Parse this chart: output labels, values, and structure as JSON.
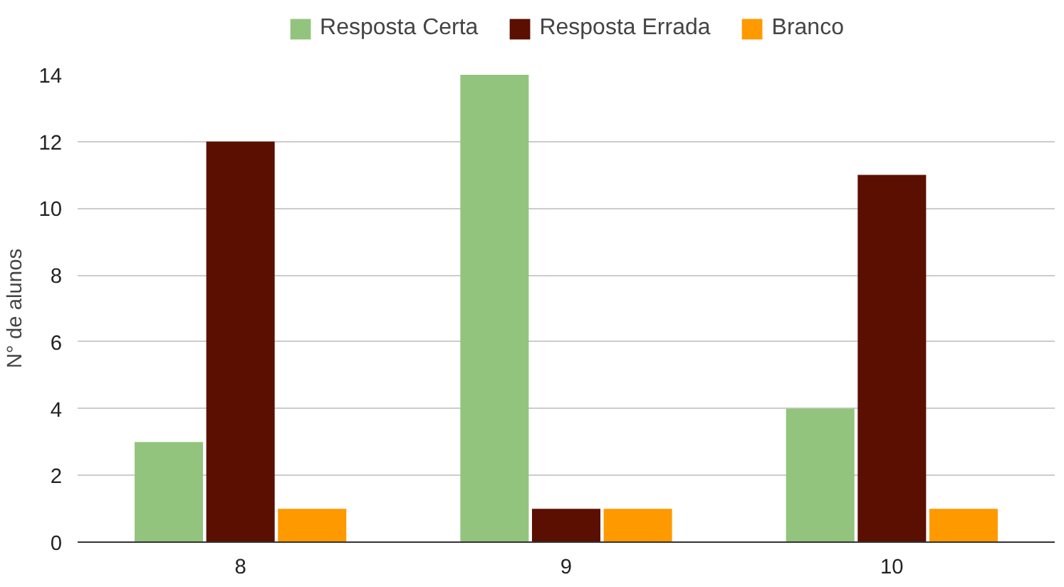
{
  "chart_data": {
    "type": "bar",
    "ylabel": "N° de alunos",
    "categories": [
      "8",
      "9",
      "10"
    ],
    "series": [
      {
        "name": "Resposta Certa",
        "color": "#93c47d",
        "values": [
          3,
          14,
          4
        ]
      },
      {
        "name": "Resposta Errada",
        "color": "#5b0f00",
        "values": [
          12,
          1,
          11
        ]
      },
      {
        "name": "Branco",
        "color": "#ff9900",
        "values": [
          1,
          1,
          1
        ]
      }
    ],
    "ylim": [
      0,
      14
    ],
    "yticks": [
      0,
      2,
      4,
      6,
      8,
      10,
      12,
      14
    ],
    "grid": "y",
    "legend": "top"
  }
}
